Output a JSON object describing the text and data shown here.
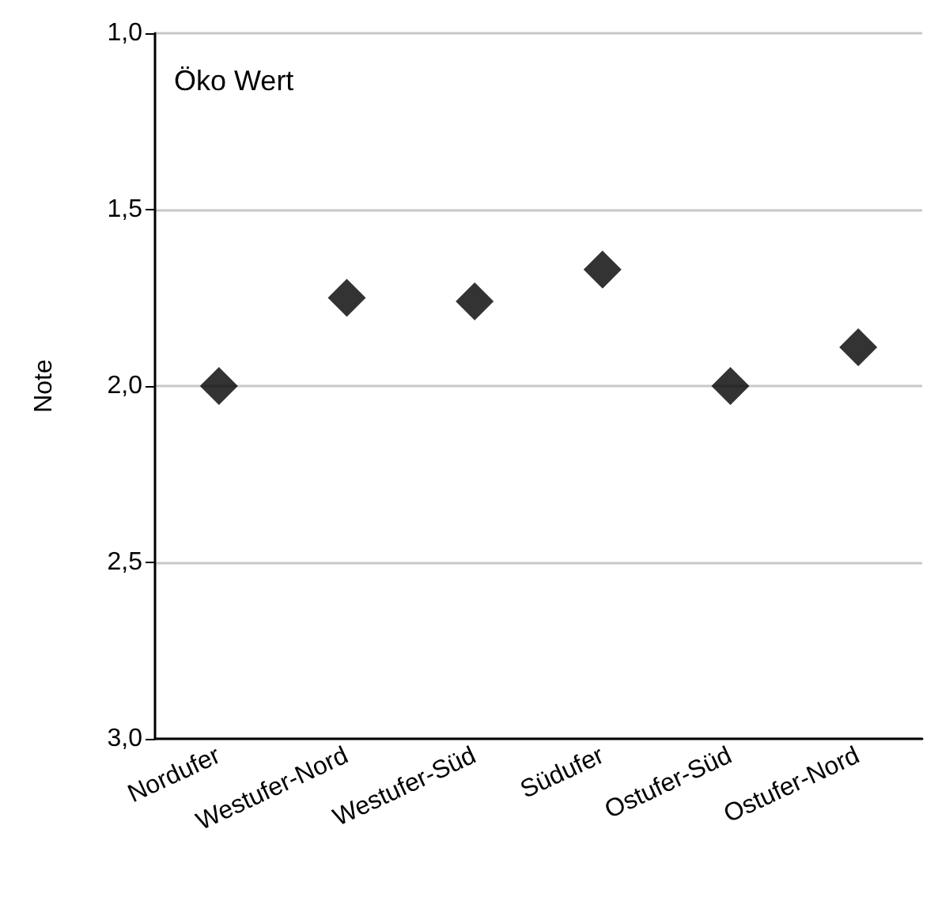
{
  "chart_data": {
    "type": "scatter",
    "ylabel": "Note",
    "annotations": [
      "Öko Wert"
    ],
    "categories": [
      "Nordufer",
      "Westufer-Nord",
      "Westufer-Süd",
      "Südufer",
      "Ostufer-Süd",
      "Ostufer-Nord"
    ],
    "series": [
      {
        "color": "#000000",
        "values": [
          2.0,
          1.75,
          1.76,
          1.67,
          2.0,
          1.89
        ]
      }
    ],
    "ylim": [
      3.0,
      1.0
    ],
    "yticks": [
      {
        "value": 1.0,
        "label": "1,0"
      },
      {
        "value": 1.5,
        "label": "1,5"
      },
      {
        "value": 2.0,
        "label": "2,0"
      },
      {
        "value": 2.5,
        "label": "2,5"
      },
      {
        "value": 3.0,
        "label": "3,0"
      }
    ],
    "grid": "y",
    "marker": "diamond"
  }
}
